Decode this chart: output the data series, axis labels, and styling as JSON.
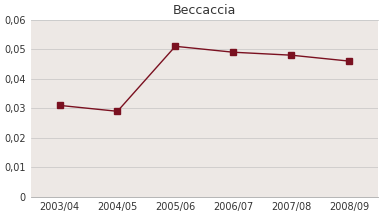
{
  "title": "Beccaccia",
  "x_labels": [
    "2003/04",
    "2004/05",
    "2005/06",
    "2006/07",
    "2007/08",
    "2008/09"
  ],
  "y_values": [
    0.031,
    0.029,
    0.051,
    0.049,
    0.048,
    0.046
  ],
  "line_color": "#7a1020",
  "marker": "s",
  "marker_size": 4,
  "ylim": [
    0,
    0.06
  ],
  "yticks": [
    0,
    0.01,
    0.02,
    0.03,
    0.04,
    0.05,
    0.06
  ],
  "ytick_labels": [
    "0",
    "0,01",
    "0,02",
    "0,03",
    "0,04",
    "0,05",
    "0,06"
  ],
  "background_color": "#ffffff",
  "plot_bg_color": "#ede8e5",
  "title_fontsize": 9,
  "tick_fontsize": 7
}
